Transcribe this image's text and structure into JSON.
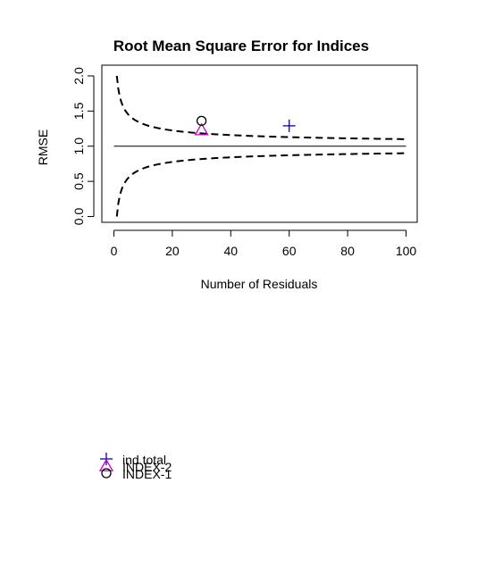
{
  "chart_data": {
    "type": "scatter",
    "title": "Root Mean Square Error for Indices",
    "xlabel": "Number of Residuals",
    "ylabel": "RMSE",
    "xlim": [
      0,
      100
    ],
    "ylim": [
      0,
      2
    ],
    "xticks": [
      "0",
      "20",
      "40",
      "60",
      "80",
      "100"
    ],
    "xtick_values": [
      0,
      20,
      40,
      60,
      80,
      100
    ],
    "yticks": [
      "0.0",
      "0.5",
      "1.0",
      "1.5",
      "2.0"
    ],
    "ytick_values": [
      0,
      0.5,
      1.0,
      1.5,
      2.0
    ],
    "reference_line": {
      "y": 1.0,
      "x_range": [
        0,
        100
      ]
    },
    "bound_curves": {
      "n": [
        1,
        100
      ],
      "upper_formula": "1+1/sqrt(n)",
      "lower_formula": "1-1/sqrt(n)",
      "style": "dashed"
    },
    "series": [
      {
        "name": "ind.total",
        "marker": "plus",
        "color": "#0000cc",
        "points": [
          {
            "x": 60,
            "y": 1.29
          }
        ]
      },
      {
        "name": "INDEX-2",
        "marker": "triangle",
        "color": "#cc00cc",
        "points": [
          {
            "x": 30,
            "y": 1.23
          }
        ]
      },
      {
        "name": "INDEX-1",
        "marker": "circle",
        "color": "#000000",
        "points": [
          {
            "x": 30,
            "y": 1.36
          }
        ]
      }
    ],
    "legend": {
      "position": "bottom-left",
      "entries": [
        {
          "label": "ind.total",
          "marker": "plus",
          "color": "#0000cc"
        },
        {
          "label": "INDEX-2",
          "marker": "triangle",
          "color": "#cc00cc"
        },
        {
          "label": "INDEX-1",
          "marker": "circle",
          "color": "#000000"
        }
      ]
    },
    "grid": false
  }
}
